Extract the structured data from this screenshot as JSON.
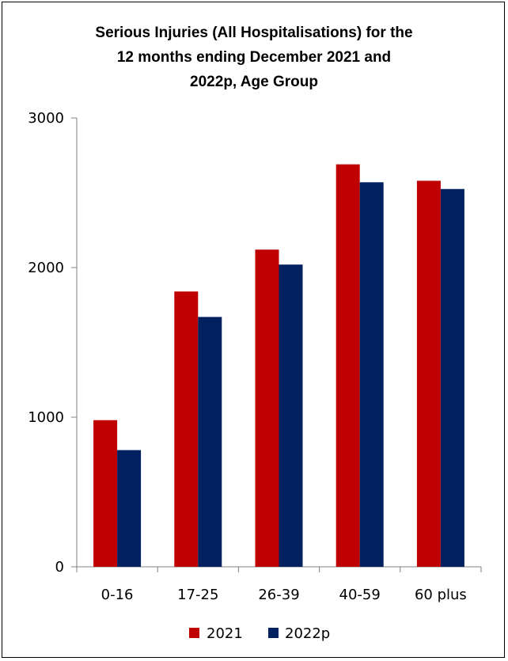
{
  "chart_data": {
    "type": "bar",
    "title_lines": [
      "Serious Injuries (All Hospitalisations)  for the",
      "12 months  ending December 2021 and",
      "2022p, Age Group"
    ],
    "categories": [
      "0-16",
      "17-25",
      "26-39",
      "40-59",
      "60 plus"
    ],
    "series": [
      {
        "name": "2021",
        "color": "#C00000",
        "values": [
          980,
          1840,
          2120,
          2690,
          2580
        ]
      },
      {
        "name": "2022p",
        "color": "#002060",
        "values": [
          780,
          1670,
          2020,
          2570,
          2525
        ]
      }
    ],
    "yticks": [
      0,
      1000,
      2000,
      3000
    ],
    "ytick_labels": [
      "0",
      "1000",
      "2000",
      "3000"
    ],
    "ylim": [
      0,
      3000
    ],
    "xlabel": "",
    "ylabel": "",
    "grid": false,
    "legend_position": "bottom"
  }
}
